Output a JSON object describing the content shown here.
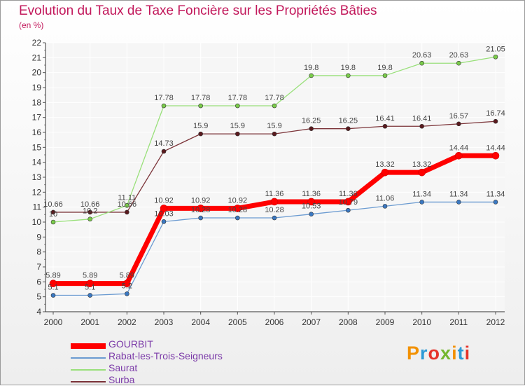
{
  "title": "Evolution du Taux de Taxe Foncière sur les Propriétés Bâties",
  "unit": "(en %)",
  "logo": "Proxiti",
  "logo_colors": [
    "#f29100",
    "#2d9ad6",
    "#e5332a",
    "#75b72e",
    "#f29100",
    "#2d9ad6",
    "#e5332a"
  ],
  "chart_data": {
    "type": "line",
    "title": "Evolution du Taux de Taxe Foncière sur les Propriétés Bâties",
    "ylabel": "(en %)",
    "xlabel": "",
    "categories": [
      "2000",
      "2001",
      "2002",
      "2003",
      "2004",
      "2005",
      "2006",
      "2007",
      "2008",
      "2009",
      "2010",
      "2011",
      "2012"
    ],
    "ylim": [
      4,
      22
    ],
    "yticks": [
      4,
      5,
      6,
      7,
      8,
      9,
      10,
      11,
      12,
      13,
      14,
      15,
      16,
      17,
      18,
      19,
      20,
      21,
      22
    ],
    "grid": true,
    "legend": "bottom-left",
    "series": [
      {
        "name": "GOURBIT",
        "color": "#ff0000",
        "marker": "#ff0000",
        "width": 7,
        "values": [
          5.89,
          5.89,
          5.89,
          10.92,
          10.92,
          10.92,
          11.36,
          11.36,
          11.36,
          13.32,
          13.32,
          14.44,
          14.44
        ],
        "labels": [
          "5.89",
          "5.89",
          "5.89",
          "10.92",
          "10.92",
          "10.92",
          "11.36",
          "11.36",
          "11.36",
          "13.32",
          "13.32",
          "14.44",
          "14.44"
        ]
      },
      {
        "name": "Rabat-les-Trois-Seigneurs",
        "color": "#6b9bd1",
        "marker": "#3a78c2",
        "width": 1.3,
        "values": [
          5.1,
          5.1,
          5.2,
          10.03,
          10.28,
          10.28,
          10.28,
          10.53,
          10.79,
          11.06,
          11.34,
          11.34,
          11.34
        ],
        "labels": [
          "5.1",
          "5.1",
          "5.2",
          "10.03",
          "10.28",
          "10.28",
          "10.28",
          "10.53",
          "10.79",
          "11.06",
          "11.34",
          "11.34",
          "11.34"
        ]
      },
      {
        "name": "Saurat",
        "color": "#99e07a",
        "marker": "#7acc4a",
        "width": 1.3,
        "values": [
          10,
          10.2,
          11.11,
          17.78,
          17.78,
          17.78,
          17.78,
          19.8,
          19.8,
          19.8,
          20.63,
          20.63,
          21.05
        ],
        "labels": [
          "10",
          "10.2",
          "11.11",
          "17.78",
          "17.78",
          "17.78",
          "17.78",
          "19.8",
          "19.8",
          "19.8",
          "20.63",
          "20.63",
          "21.05"
        ]
      },
      {
        "name": "Surba",
        "color": "#7b3338",
        "marker": "#5a1a1e",
        "width": 1.3,
        "values": [
          10.66,
          10.66,
          10.66,
          14.73,
          15.9,
          15.9,
          15.9,
          16.25,
          16.25,
          16.41,
          16.41,
          16.57,
          16.74
        ],
        "labels": [
          "10.66",
          "10.66",
          "10.66",
          "14.73",
          "15.9",
          "15.9",
          "15.9",
          "16.25",
          "16.25",
          "16.41",
          "16.41",
          "16.57",
          "16.74"
        ]
      }
    ]
  }
}
